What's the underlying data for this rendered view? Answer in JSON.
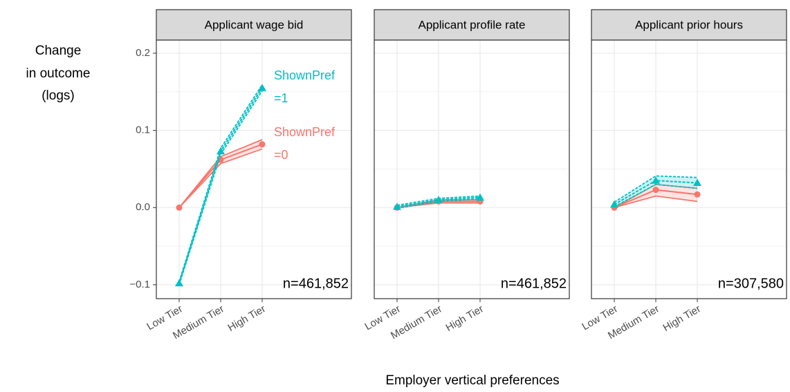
{
  "y_axis_title": [
    "Change",
    "in outcome",
    "(logs)"
  ],
  "x_axis_title": "Employer vertical preferences",
  "chart_data": [
    {
      "type": "line",
      "title": "Applicant wage bid",
      "n_label": "n=461,852",
      "categories": [
        "Low Tier",
        "Medium Tier",
        "High Tier"
      ],
      "ylim": [
        -0.118,
        0.217
      ],
      "yticks": [
        {
          "value": -0.1,
          "label": "−0.1"
        },
        {
          "value": 0,
          "label": "0.0"
        },
        {
          "value": 0.1,
          "label": "0.1"
        },
        {
          "value": 0.2,
          "label": "0.2"
        }
      ],
      "grid": true,
      "annotations": [
        {
          "lines": [
            "ShownPref",
            "=1"
          ],
          "color": "#00bfc4"
        },
        {
          "lines": [
            "ShownPref",
            "=0"
          ],
          "color": "#f8766d"
        }
      ],
      "series": [
        {
          "color": "#f8766d",
          "marker": "circle",
          "dashed": false,
          "values": [
            0,
            0.062,
            0.082
          ],
          "lower": [
            0,
            0.057,
            0.076
          ],
          "upper": [
            0,
            0.066,
            0.088
          ]
        },
        {
          "color": "#00bfc4",
          "marker": "triangle",
          "dashed": true,
          "values": [
            -0.098,
            0.073,
            0.155
          ],
          "lower": [
            -0.1,
            0.069,
            0.151
          ],
          "upper": [
            -0.096,
            0.077,
            0.159
          ]
        }
      ]
    },
    {
      "type": "line",
      "title": "Applicant profile rate",
      "n_label": "n=461,852",
      "categories": [
        "Low Tier",
        "Medium Tier",
        "High Tier"
      ],
      "ylim": [
        -0.118,
        0.217
      ],
      "yticks": [
        -0.1,
        0,
        0.1,
        0.2
      ],
      "grid": true,
      "series": [
        {
          "color": "#f8766d",
          "marker": "circle",
          "dashed": false,
          "values": [
            0,
            0.008,
            0.008
          ],
          "lower": [
            0,
            0.006,
            0.006
          ],
          "upper": [
            0,
            0.01,
            0.01
          ]
        },
        {
          "color": "#00bfc4",
          "marker": "triangle",
          "dashed": true,
          "values": [
            0.001,
            0.01,
            0.013
          ],
          "lower": [
            -0.001,
            0.008,
            0.011
          ],
          "upper": [
            0.003,
            0.012,
            0.015
          ]
        }
      ]
    },
    {
      "type": "line",
      "title": "Applicant prior hours",
      "n_label": "n=307,580",
      "categories": [
        "Low Tier",
        "Medium Tier",
        "High Tier"
      ],
      "ylim": [
        -0.118,
        0.217
      ],
      "yticks": [
        -0.1,
        0,
        0.1,
        0.2
      ],
      "grid": true,
      "series": [
        {
          "color": "#f8766d",
          "marker": "circle",
          "dashed": false,
          "values": [
            0,
            0.023,
            0.017
          ],
          "lower": [
            0,
            0.015,
            0.008
          ],
          "upper": [
            0,
            0.03,
            0.025
          ]
        },
        {
          "color": "#00bfc4",
          "marker": "triangle",
          "dashed": true,
          "values": [
            0.004,
            0.035,
            0.032
          ],
          "lower": [
            0.001,
            0.03,
            0.025
          ],
          "upper": [
            0.007,
            0.041,
            0.039
          ]
        }
      ]
    }
  ]
}
